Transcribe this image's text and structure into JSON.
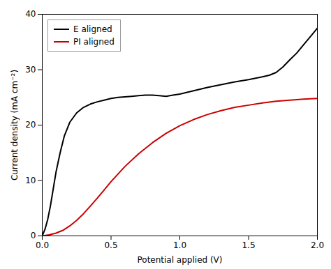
{
  "chart_data": {
    "type": "line",
    "xlabel": "Potential applied (V)",
    "ylabel": "Current density (mA cm⁻²)",
    "xlim": [
      0,
      2.0
    ],
    "ylim": [
      0,
      40
    ],
    "xticks": [
      {
        "value": 0.0,
        "label": "0.0"
      },
      0.5,
      {
        "value": 1.0,
        "label": "1.0"
      },
      1.5,
      {
        "value": 2.0,
        "label": "2.0"
      }
    ],
    "yticks": [
      0,
      10,
      20,
      30,
      40
    ],
    "legend": "upper left",
    "series": [
      {
        "name": "E aligned",
        "color": "#000000",
        "x": [
          0.0,
          0.02,
          0.04,
          0.06,
          0.08,
          0.1,
          0.13,
          0.16,
          0.2,
          0.25,
          0.3,
          0.35,
          0.4,
          0.45,
          0.5,
          0.55,
          0.6,
          0.65,
          0.7,
          0.75,
          0.8,
          0.85,
          0.9,
          0.95,
          1.0,
          1.1,
          1.2,
          1.3,
          1.4,
          1.5,
          1.6,
          1.65,
          1.7,
          1.75,
          1.8,
          1.85,
          1.9,
          1.95,
          2.0
        ],
        "values": [
          0.0,
          1.2,
          3.0,
          5.5,
          8.5,
          11.5,
          15.0,
          18.0,
          20.5,
          22.2,
          23.2,
          23.8,
          24.2,
          24.5,
          24.8,
          25.0,
          25.1,
          25.2,
          25.3,
          25.4,
          25.4,
          25.3,
          25.2,
          25.4,
          25.6,
          26.2,
          26.8,
          27.3,
          27.8,
          28.2,
          28.7,
          29.0,
          29.5,
          30.5,
          31.8,
          33.0,
          34.5,
          36.0,
          37.5
        ]
      },
      {
        "name": "PI aligned",
        "color": "#cc0000",
        "x": [
          0.0,
          0.05,
          0.1,
          0.15,
          0.2,
          0.25,
          0.3,
          0.35,
          0.4,
          0.45,
          0.5,
          0.6,
          0.7,
          0.8,
          0.9,
          1.0,
          1.1,
          1.2,
          1.3,
          1.4,
          1.5,
          1.6,
          1.7,
          1.8,
          1.9,
          2.0
        ],
        "values": [
          0.0,
          0.2,
          0.5,
          1.0,
          1.8,
          2.8,
          4.0,
          5.4,
          6.8,
          8.3,
          9.8,
          12.5,
          14.8,
          16.8,
          18.5,
          19.9,
          21.0,
          21.9,
          22.6,
          23.2,
          23.6,
          24.0,
          24.3,
          24.5,
          24.7,
          24.8
        ]
      }
    ]
  }
}
